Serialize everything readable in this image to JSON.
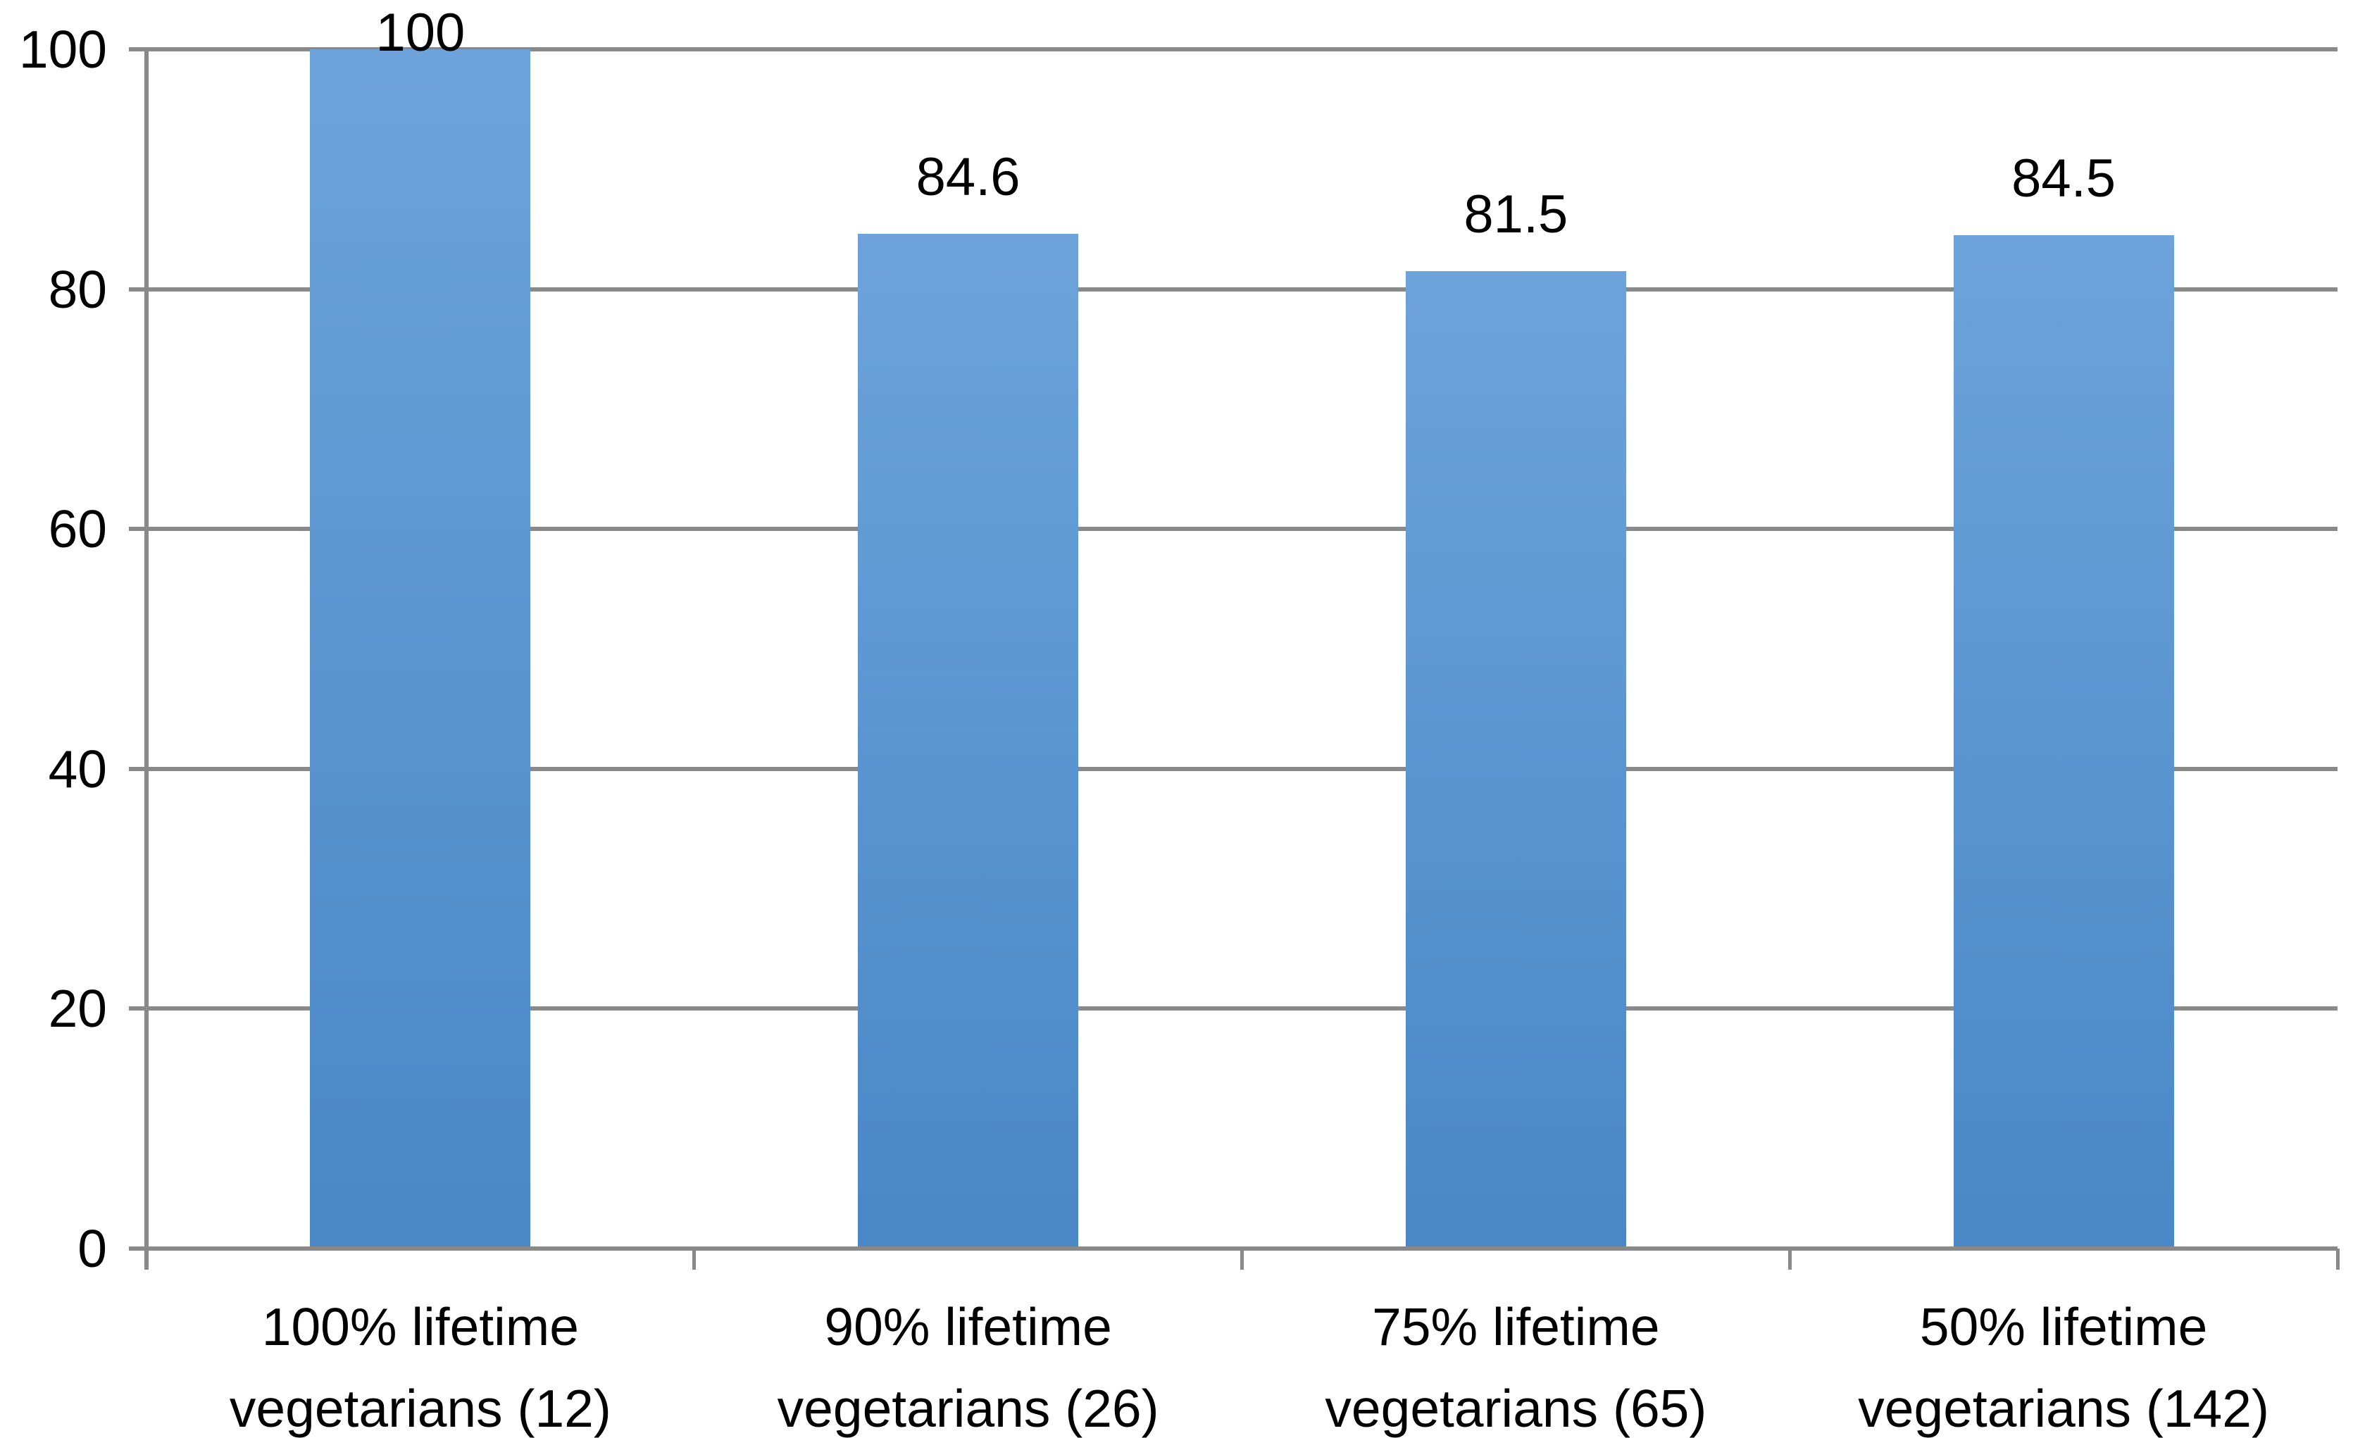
{
  "chart_data": {
    "type": "bar",
    "title": "",
    "xlabel": "",
    "ylabel": "",
    "categories": [
      "100% lifetime vegetarians (12)",
      "90% lifetime vegetarians (26)",
      "75% lifetime vegetarians (65)",
      "50% lifetime vegetarians (142)"
    ],
    "values": [
      100,
      84.6,
      81.5,
      84.5
    ],
    "data_labels": [
      "100",
      "84.6",
      "81.5",
      "84.5"
    ],
    "y_ticks": [
      0,
      20,
      40,
      60,
      80,
      100
    ],
    "y_tick_labels": [
      "0",
      "20",
      "40",
      "60",
      "80",
      "100"
    ],
    "ylim": [
      0,
      100
    ],
    "grid": true,
    "legend_position": "none",
    "colors": {
      "bar_gradient_top": "#6DA3DA",
      "bar_gradient_bottom": "#4987C7",
      "gridline": "#898989",
      "axis": "#898989",
      "text": "#000000",
      "background": "#FFFFFF"
    }
  }
}
